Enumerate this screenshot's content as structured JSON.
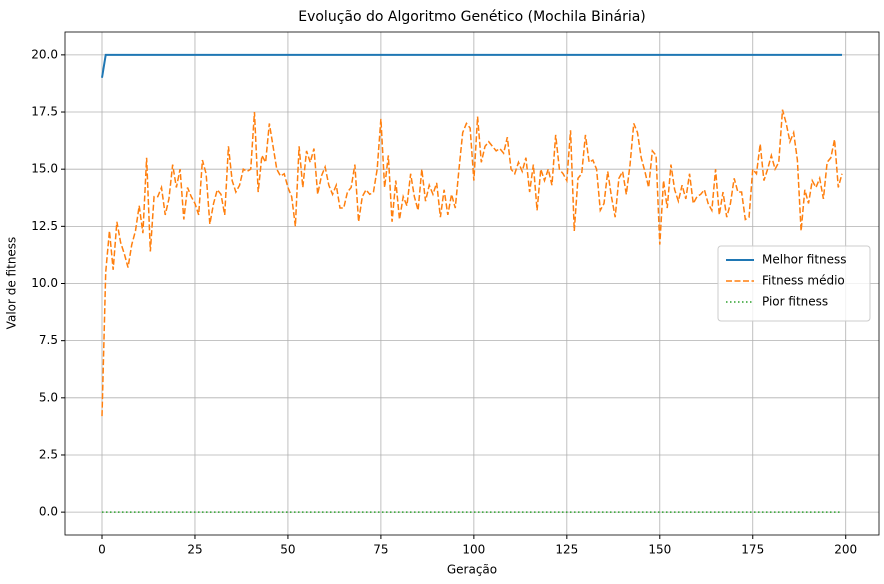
{
  "chart_data": {
    "type": "line",
    "title": "Evolução do Algoritmo Genético (Mochila Binária)",
    "xlabel": "Geração",
    "ylabel": "Valor de fitness",
    "x": [
      0,
      1,
      2,
      3,
      4,
      5,
      6,
      7,
      8,
      9,
      10,
      11,
      12,
      13,
      14,
      15,
      16,
      17,
      18,
      19,
      20,
      21,
      22,
      23,
      24,
      25,
      26,
      27,
      28,
      29,
      30,
      31,
      32,
      33,
      34,
      35,
      36,
      37,
      38,
      39,
      40,
      41,
      42,
      43,
      44,
      45,
      46,
      47,
      48,
      49,
      50,
      51,
      52,
      53,
      54,
      55,
      56,
      57,
      58,
      59,
      60,
      61,
      62,
      63,
      64,
      65,
      66,
      67,
      68,
      69,
      70,
      71,
      72,
      73,
      74,
      75,
      76,
      77,
      78,
      79,
      80,
      81,
      82,
      83,
      84,
      85,
      86,
      87,
      88,
      89,
      90,
      91,
      92,
      93,
      94,
      95,
      96,
      97,
      98,
      99,
      100,
      101,
      102,
      103,
      104,
      105,
      106,
      107,
      108,
      109,
      110,
      111,
      112,
      113,
      114,
      115,
      116,
      117,
      118,
      119,
      120,
      121,
      122,
      123,
      124,
      125,
      126,
      127,
      128,
      129,
      130,
      131,
      132,
      133,
      134,
      135,
      136,
      137,
      138,
      139,
      140,
      141,
      142,
      143,
      144,
      145,
      146,
      147,
      148,
      149,
      150,
      151,
      152,
      153,
      154,
      155,
      156,
      157,
      158,
      159,
      160,
      161,
      162,
      163,
      164,
      165,
      166,
      167,
      168,
      169,
      170,
      171,
      172,
      173,
      174,
      175,
      176,
      177,
      178,
      179,
      180,
      181,
      182,
      183,
      184,
      185,
      186,
      187,
      188,
      189,
      190,
      191,
      192,
      193,
      194,
      195,
      196,
      197,
      198,
      199
    ],
    "series": [
      {
        "name": "Melhor fitness",
        "color": "#1f77b4",
        "linestyle": "solid",
        "values": [
          19,
          20,
          20,
          20,
          20,
          20,
          20,
          20,
          20,
          20,
          20,
          20,
          20,
          20,
          20,
          20,
          20,
          20,
          20,
          20,
          20,
          20,
          20,
          20,
          20,
          20,
          20,
          20,
          20,
          20,
          20,
          20,
          20,
          20,
          20,
          20,
          20,
          20,
          20,
          20,
          20,
          20,
          20,
          20,
          20,
          20,
          20,
          20,
          20,
          20,
          20,
          20,
          20,
          20,
          20,
          20,
          20,
          20,
          20,
          20,
          20,
          20,
          20,
          20,
          20,
          20,
          20,
          20,
          20,
          20,
          20,
          20,
          20,
          20,
          20,
          20,
          20,
          20,
          20,
          20,
          20,
          20,
          20,
          20,
          20,
          20,
          20,
          20,
          20,
          20,
          20,
          20,
          20,
          20,
          20,
          20,
          20,
          20,
          20,
          20,
          20,
          20,
          20,
          20,
          20,
          20,
          20,
          20,
          20,
          20,
          20,
          20,
          20,
          20,
          20,
          20,
          20,
          20,
          20,
          20,
          20,
          20,
          20,
          20,
          20,
          20,
          20,
          20,
          20,
          20,
          20,
          20,
          20,
          20,
          20,
          20,
          20,
          20,
          20,
          20,
          20,
          20,
          20,
          20,
          20,
          20,
          20,
          20,
          20,
          20,
          20,
          20,
          20,
          20,
          20,
          20,
          20,
          20,
          20,
          20,
          20,
          20,
          20,
          20,
          20,
          20,
          20,
          20,
          20,
          20,
          20,
          20,
          20,
          20,
          20,
          20,
          20,
          20,
          20,
          20,
          20,
          20,
          20,
          20,
          20,
          20,
          20,
          20,
          20,
          20,
          20,
          20,
          20,
          20,
          20,
          20,
          20,
          20,
          20,
          20
        ]
      },
      {
        "name": "Fitness médio",
        "color": "#ff7f0e",
        "linestyle": "dashed",
        "values": [
          4.2,
          10.5,
          12.3,
          10.6,
          12.7,
          11.8,
          11.3,
          10.7,
          11.7,
          12.3,
          13.4,
          12.2,
          15.5,
          11.4,
          13.8,
          13.8,
          14.2,
          13.0,
          13.7,
          15.2,
          14.2,
          15.0,
          12.8,
          14.2,
          13.8,
          13.5,
          13.0,
          15.4,
          14.8,
          12.6,
          13.5,
          14.1,
          13.9,
          13.0,
          16.0,
          14.5,
          14.0,
          14.3,
          15.0,
          14.9,
          15.0,
          17.5,
          14.0,
          15.6,
          15.3,
          17.0,
          16.0,
          15.0,
          14.7,
          14.8,
          14.2,
          13.8,
          12.5,
          16.0,
          14.2,
          15.8,
          15.3,
          15.9,
          13.9,
          14.7,
          15.1,
          14.3,
          13.9,
          14.3,
          13.3,
          13.3,
          14.0,
          14.2,
          15.2,
          12.7,
          13.8,
          14.1,
          13.9,
          14.0,
          15.0,
          17.2,
          14.2,
          15.6,
          12.7,
          14.5,
          12.8,
          13.8,
          13.4,
          14.8,
          13.8,
          13.2,
          15.0,
          13.6,
          14.3,
          13.9,
          14.4,
          12.9,
          14.1,
          13.0,
          13.9,
          13.3,
          15.0,
          16.6,
          17.0,
          16.8,
          14.5,
          17.3,
          15.3,
          16.0,
          16.2,
          16.0,
          15.8,
          15.9,
          15.7,
          16.4,
          15.0,
          14.8,
          15.3,
          14.9,
          15.5,
          14.0,
          15.2,
          13.2,
          15.0,
          14.5,
          15.0,
          14.3,
          16.5,
          15.0,
          14.8,
          14.5,
          16.7,
          12.3,
          14.6,
          14.8,
          16.5,
          15.3,
          15.4,
          15.0,
          13.2,
          13.5,
          14.9,
          13.8,
          12.9,
          14.6,
          14.9,
          13.9,
          15.2,
          17.0,
          16.6,
          15.5,
          14.9,
          14.2,
          15.8,
          15.6,
          11.7,
          14.5,
          13.3,
          15.2,
          14.1,
          13.6,
          14.3,
          13.7,
          14.8,
          13.5,
          13.8,
          13.9,
          14.1,
          13.5,
          13.2,
          15.0,
          13.0,
          14.0,
          12.9,
          13.5,
          14.6,
          14.0,
          14.0,
          12.8,
          12.9,
          15.0,
          14.8,
          16.1,
          14.5,
          15.0,
          15.6,
          15.0,
          15.3,
          17.6,
          17.0,
          16.2,
          16.6,
          15.4,
          12.3,
          14.1,
          13.5,
          14.5,
          14.2,
          14.6,
          13.7,
          15.3,
          15.5,
          16.3,
          14.2,
          14.8
        ]
      },
      {
        "name": "Pior fitness",
        "color": "#2ca02c",
        "linestyle": "dotted",
        "values": [
          0,
          0,
          0,
          0,
          0,
          0,
          0,
          0,
          0,
          0,
          0,
          0,
          0,
          0,
          0,
          0,
          0,
          0,
          0,
          0,
          0,
          0,
          0,
          0,
          0,
          0,
          0,
          0,
          0,
          0,
          0,
          0,
          0,
          0,
          0,
          0,
          0,
          0,
          0,
          0,
          0,
          0,
          0,
          0,
          0,
          0,
          0,
          0,
          0,
          0,
          0,
          0,
          0,
          0,
          0,
          0,
          0,
          0,
          0,
          0,
          0,
          0,
          0,
          0,
          0,
          0,
          0,
          0,
          0,
          0,
          0,
          0,
          0,
          0,
          0,
          0,
          0,
          0,
          0,
          0,
          0,
          0,
          0,
          0,
          0,
          0,
          0,
          0,
          0,
          0,
          0,
          0,
          0,
          0,
          0,
          0,
          0,
          0,
          0,
          0,
          0,
          0,
          0,
          0,
          0,
          0,
          0,
          0,
          0,
          0,
          0,
          0,
          0,
          0,
          0,
          0,
          0,
          0,
          0,
          0,
          0,
          0,
          0,
          0,
          0,
          0,
          0,
          0,
          0,
          0,
          0,
          0,
          0,
          0,
          0,
          0,
          0,
          0,
          0,
          0,
          0,
          0,
          0,
          0,
          0,
          0,
          0,
          0,
          0,
          0,
          0,
          0,
          0,
          0,
          0,
          0,
          0,
          0,
          0,
          0,
          0,
          0,
          0,
          0,
          0,
          0,
          0,
          0,
          0,
          0,
          0,
          0,
          0,
          0,
          0,
          0,
          0,
          0,
          0,
          0,
          0,
          0,
          0,
          0,
          0,
          0,
          0,
          0,
          0,
          0,
          0,
          0,
          0,
          0,
          0,
          0,
          0,
          0,
          0,
          0
        ]
      }
    ],
    "xlim": [
      -9.95,
      208.95
    ],
    "ylim": [
      -1,
      21
    ],
    "xticks": [
      0,
      25,
      50,
      75,
      100,
      125,
      150,
      175,
      200
    ],
    "yticks": [
      {
        "value": 0,
        "label": "0.0"
      },
      {
        "value": 2.5,
        "label": "2.5"
      },
      {
        "value": 5,
        "label": "5.0"
      },
      {
        "value": 7.5,
        "label": "7.5"
      },
      {
        "value": 10,
        "label": "10.0"
      },
      {
        "value": 12.5,
        "label": "12.5"
      },
      {
        "value": 15,
        "label": "15.0"
      },
      {
        "value": 17.5,
        "label": "17.5"
      },
      {
        "value": 20,
        "label": "20.0"
      }
    ],
    "grid": true,
    "legend": "center right"
  }
}
